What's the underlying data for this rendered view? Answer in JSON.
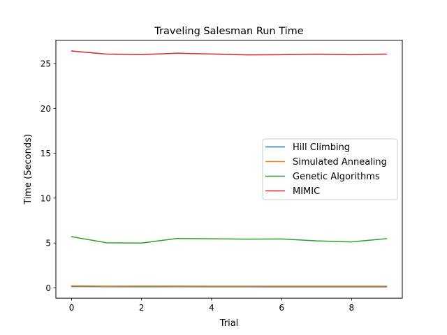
{
  "chart_data": {
    "type": "line",
    "title": "Traveling Salesman Run Time",
    "xlabel": "Trial",
    "ylabel": "Time (Seconds)",
    "x": [
      0,
      1,
      2,
      3,
      4,
      5,
      6,
      7,
      8,
      9
    ],
    "xlim": [
      -0.45,
      9.45
    ],
    "ylim": [
      -1.15,
      27.6
    ],
    "xticks": [
      0,
      2,
      4,
      6,
      8
    ],
    "xtick_labels": [
      "0",
      "2",
      "4",
      "6",
      "8"
    ],
    "yticks": [
      0,
      5,
      10,
      15,
      20,
      25
    ],
    "ytick_labels": [
      "0",
      "5",
      "10",
      "15",
      "20",
      "25"
    ],
    "grid": false,
    "legend_position": "center-right",
    "series": [
      {
        "name": "Hill Climbing",
        "color": "#1f77b4",
        "values": [
          0.15,
          0.13,
          0.12,
          0.13,
          0.12,
          0.12,
          0.11,
          0.11,
          0.11,
          0.11
        ]
      },
      {
        "name": "Simulated Annealing",
        "color": "#ff7f0e",
        "values": [
          0.22,
          0.19,
          0.2,
          0.2,
          0.19,
          0.19,
          0.19,
          0.19,
          0.19,
          0.19
        ]
      },
      {
        "name": "Genetic Algorithms",
        "color": "#2ca02c",
        "values": [
          5.7,
          5.02,
          4.99,
          5.5,
          5.47,
          5.43,
          5.45,
          5.23,
          5.12,
          5.48
        ]
      },
      {
        "name": "MIMIC",
        "color": "#d62728",
        "values": [
          26.4,
          26.05,
          25.99,
          26.15,
          26.06,
          25.96,
          25.98,
          26.04,
          25.98,
          26.05
        ]
      }
    ]
  }
}
